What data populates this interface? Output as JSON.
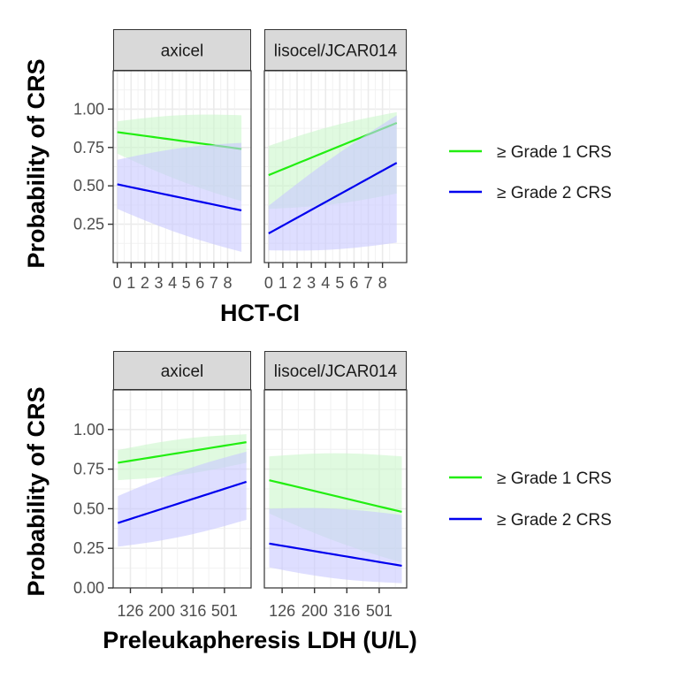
{
  "colors": {
    "grade1": "#22ee11",
    "grade2": "#0000ee",
    "grade1_band": "#ccf7cc",
    "grade2_band": "#c8c8ff",
    "strip_bg": "#d9d9d9",
    "grid_major": "#ebebeb",
    "grid_minor": "#f2f2f2"
  },
  "chart_data": [
    {
      "type": "line",
      "ylabel": "Probability of CRS",
      "xlabel": "HCT-CI",
      "ylim": [
        0.0,
        1.25
      ],
      "y_ticks": [
        "0.25",
        "0.50",
        "0.75",
        "1.00"
      ],
      "x_ticks": [
        "0",
        "1",
        "2",
        "3",
        "4",
        "5",
        "6",
        "7",
        "8"
      ],
      "x_range": [
        0,
        9
      ],
      "xlim": [
        -0.3,
        9.7
      ],
      "grid": true,
      "legend_position": "right",
      "legend": [
        "≥ Grade 1 CRS",
        "≥ Grade 2 CRS"
      ],
      "panels": [
        {
          "facet": "axicel",
          "series": [
            {
              "name": "≥ Grade 1 CRS",
              "color_key": "grade1",
              "y": [
                0.85,
                0.74
              ],
              "lower": [
                0.71,
                0.4
              ],
              "upper": [
                0.92,
                0.96
              ]
            },
            {
              "name": "≥ Grade 2 CRS",
              "color_key": "grade2",
              "y": [
                0.51,
                0.34
              ],
              "lower": [
                0.35,
                0.07
              ],
              "upper": [
                0.67,
                0.78
              ]
            }
          ]
        },
        {
          "facet": "lisocel/JCAR014",
          "series": [
            {
              "name": "≥ Grade 1 CRS",
              "color_key": "grade1",
              "y": [
                0.57,
                0.91
              ],
              "lower": [
                0.35,
                0.45
              ],
              "upper": [
                0.76,
                0.98
              ]
            },
            {
              "name": "≥ Grade 2 CRS",
              "color_key": "grade2",
              "y": [
                0.19,
                0.65
              ],
              "lower": [
                0.08,
                0.13
              ],
              "upper": [
                0.37,
                0.96
              ]
            }
          ]
        }
      ]
    },
    {
      "type": "line",
      "ylabel": "Probability of CRS",
      "xlabel": "Preleukapheresis LDH (U/L)",
      "ylim": [
        0.0,
        1.25
      ],
      "y_ticks": [
        "0.00",
        "0.25",
        "0.50",
        "0.75",
        "1.00"
      ],
      "x_ticks": [
        "126",
        "200",
        "316",
        "501"
      ],
      "x_tick_positions": [
        0,
        1,
        2,
        3
      ],
      "x_range": [
        -0.4,
        3.7
      ],
      "xlim": [
        -0.55,
        3.85
      ],
      "grid": true,
      "legend_position": "right",
      "legend": [
        "≥ Grade 1 CRS",
        "≥ Grade 2 CRS"
      ],
      "panels": [
        {
          "facet": "axicel",
          "series": [
            {
              "name": "≥ Grade 1 CRS",
              "color_key": "grade1",
              "y": [
                0.79,
                0.92
              ],
              "lower": [
                0.68,
                0.79
              ],
              "upper": [
                0.87,
                0.97
              ]
            },
            {
              "name": "≥ Grade 2 CRS",
              "color_key": "grade2",
              "y": [
                0.41,
                0.67
              ],
              "lower": [
                0.26,
                0.43
              ],
              "upper": [
                0.58,
                0.86
              ]
            }
          ]
        },
        {
          "facet": "lisocel/JCAR014",
          "series": [
            {
              "name": "≥ Grade 1 CRS",
              "color_key": "grade1",
              "y": [
                0.68,
                0.48
              ],
              "lower": [
                0.47,
                0.16
              ],
              "upper": [
                0.83,
                0.83
              ]
            },
            {
              "name": "≥ Grade 2 CRS",
              "color_key": "grade2",
              "y": [
                0.28,
                0.14
              ],
              "lower": [
                0.13,
                0.03
              ],
              "upper": [
                0.5,
                0.46
              ]
            }
          ]
        }
      ]
    }
  ]
}
